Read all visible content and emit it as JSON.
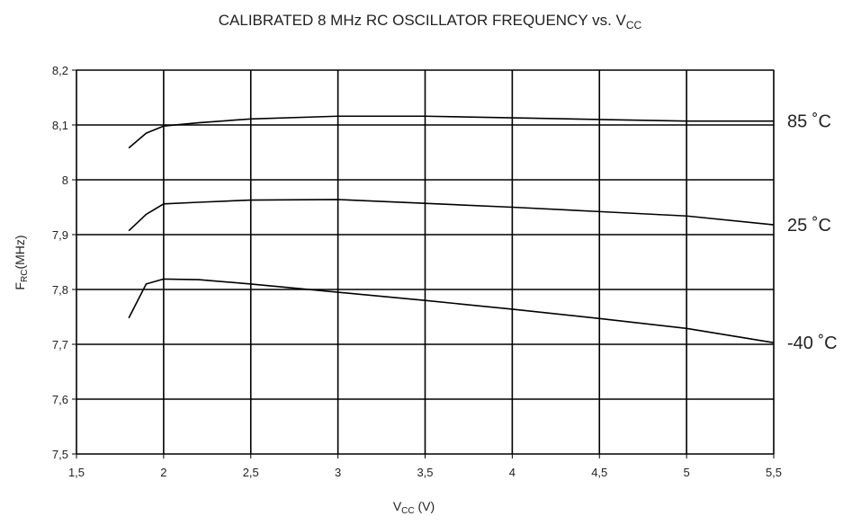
{
  "chart_data": {
    "type": "line",
    "title": [
      "CALIBRATED 8 MHz RC OSCILLATOR FREQUENCY vs. V",
      "CC"
    ],
    "xlabel": [
      "V",
      "CC",
      " (V)"
    ],
    "ylabel": [
      "F",
      "RC",
      "(MHz)"
    ],
    "x": [
      1.8,
      1.9,
      2.0,
      2.2,
      2.5,
      3.0,
      3.5,
      4.0,
      4.5,
      5.0,
      5.5
    ],
    "series": [
      {
        "name": "85 ˚C",
        "color": "#000000",
        "values": [
          8.058,
          8.085,
          8.098,
          8.104,
          8.111,
          8.116,
          8.116,
          8.113,
          8.11,
          8.107,
          8.107
        ]
      },
      {
        "name": "25 ˚C",
        "color": "#000000",
        "values": [
          7.907,
          7.937,
          7.956,
          7.959,
          7.963,
          7.964,
          7.957,
          7.95,
          7.942,
          7.934,
          7.918
        ]
      },
      {
        "name": "-40 ˚C",
        "color": "#000000",
        "values": [
          7.748,
          7.81,
          7.819,
          7.818,
          7.81,
          7.795,
          7.78,
          7.764,
          7.747,
          7.729,
          7.703
        ]
      }
    ],
    "xlim": [
      1.5,
      5.5
    ],
    "xticks": [
      {
        "value": 1.5,
        "label": "1,5"
      },
      2,
      {
        "value": 2.5,
        "label": "2,5"
      },
      3,
      {
        "value": 3.5,
        "label": "3,5"
      },
      4,
      {
        "value": 4.5,
        "label": "4,5"
      },
      5,
      {
        "value": 5.5,
        "label": "5,5"
      }
    ],
    "ylim": [
      7.5,
      8.2
    ],
    "yticks": [
      {
        "value": 7.5,
        "label": "7,5"
      },
      {
        "value": 7.6,
        "label": "7,6"
      },
      {
        "value": 7.7,
        "label": "7,7"
      },
      {
        "value": 7.8,
        "label": "7,8"
      },
      {
        "value": 7.9,
        "label": "7,9"
      },
      8,
      {
        "value": 8.1,
        "label": "8,1"
      },
      {
        "value": 8.2,
        "label": "8,2"
      }
    ],
    "grid": true
  }
}
